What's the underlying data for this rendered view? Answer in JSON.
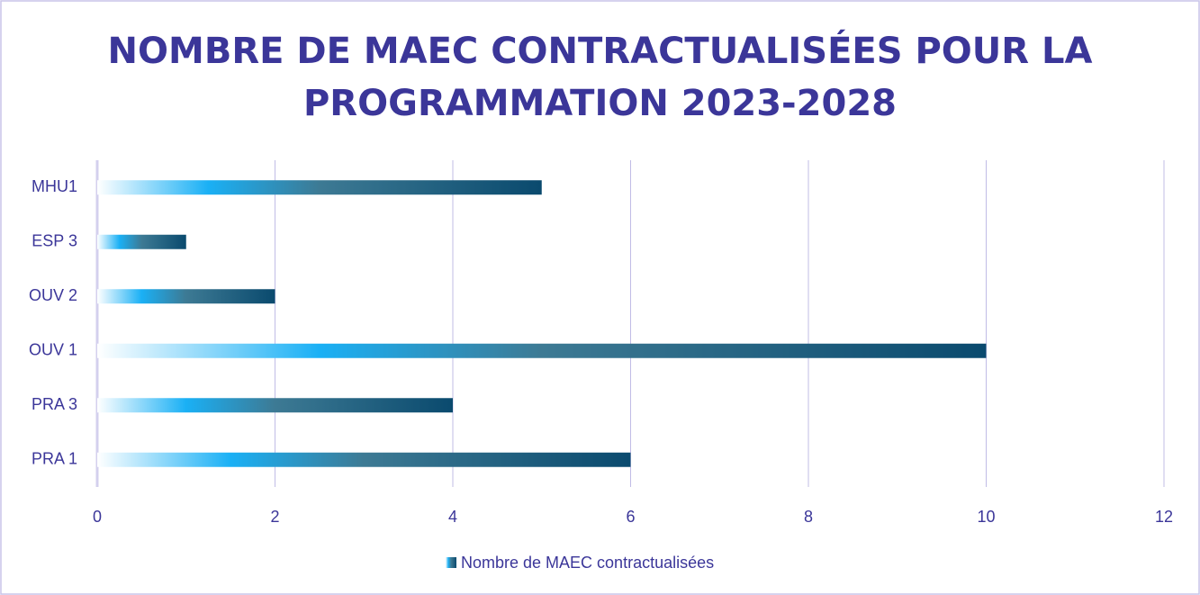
{
  "chart_data": {
    "type": "barh",
    "title": "NOMBRE DE MAEC CONTRACTUALISÉES POUR LA PROGRAMMATION 2023-2028",
    "categories": [
      "MHU1",
      "ESP 3",
      "OUV 2",
      "OUV 1",
      "PRA 3",
      "PRA 1"
    ],
    "series": [
      {
        "name": "Nombre de MAEC contractualisées",
        "color": [
          "#ffffff",
          "#1ab0f5",
          "#3d7a94",
          "#0a4a6e"
        ],
        "values": [
          5,
          1,
          2,
          10,
          4,
          6
        ]
      }
    ],
    "xlim": [
      0,
      12
    ],
    "xticks": [
      0,
      2,
      4,
      6,
      8,
      10,
      12
    ],
    "grid": true,
    "legend": "bottom"
  }
}
